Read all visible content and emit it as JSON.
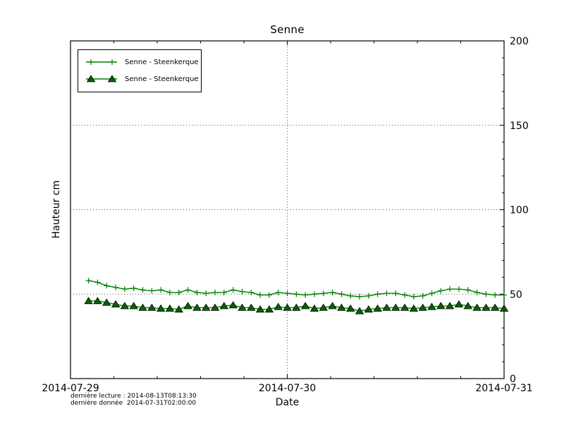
{
  "figure": {
    "title": "Senne",
    "xlabel": "Date",
    "ylabel": "Hauteur cm",
    "footnotes": [
      "dernière lecture : 2014-08-13T08:13:30",
      "dernière donnée  2014-07-31T02:00:00"
    ]
  },
  "chart_data": {
    "type": "line",
    "title": "Senne",
    "xlabel": "Date",
    "ylabel": "Hauteur cm",
    "ylim": [
      0,
      200
    ],
    "yticks": [
      0,
      50,
      100,
      150,
      200
    ],
    "ytick_side": "right",
    "xticks": [
      {
        "label": "2014-07-29",
        "hour": 0
      },
      {
        "label": "2014-07-30",
        "hour": 24
      },
      {
        "label": "2014-07-31",
        "hour": 48
      }
    ],
    "x_axis_range": [
      "2014-07-29T00:00",
      "2014-07-31T00:00"
    ],
    "x_total_hours": 48,
    "grid": {
      "style": "dotted",
      "y_values": [
        50,
        100,
        150
      ],
      "x_hours": [
        24
      ]
    },
    "legend_position": "upper left",
    "x_start": "2014-07-29T02:00",
    "x_start_hour_offset": 2,
    "x_interval_hours": 1,
    "series": [
      {
        "name": "Senne - Steenkerque",
        "marker": "plus",
        "line_color": "#008000",
        "marker_color": "#008000",
        "values": [
          58,
          57,
          55,
          54,
          53,
          53.5,
          52.5,
          52,
          52.5,
          51,
          51,
          52.5,
          51,
          50.5,
          51,
          51,
          52.5,
          51.5,
          51,
          49.5,
          49.5,
          51,
          50.5,
          50,
          49.5,
          50,
          50.5,
          51,
          50,
          49,
          48.5,
          49,
          50,
          50.5,
          50.5,
          49.5,
          48.5,
          49,
          50.5,
          52,
          53,
          53,
          52.5,
          51,
          50,
          49.5,
          49.5
        ]
      },
      {
        "name": "Senne - Steenkerque",
        "marker": "triangle",
        "line_color": "#008000",
        "marker_fill": "#006400",
        "marker_edge": "#000000",
        "values": [
          46,
          46,
          45,
          44,
          43,
          43,
          42,
          42,
          41.5,
          41.5,
          41,
          43,
          42,
          42,
          42,
          43,
          43.5,
          42,
          42,
          41,
          41,
          42.5,
          42,
          42,
          43,
          41.5,
          42,
          43,
          42,
          41.5,
          40,
          41,
          41.5,
          42,
          42,
          42,
          41.5,
          42,
          42.5,
          43,
          43,
          44,
          43,
          42,
          42,
          42,
          41.5
        ]
      }
    ],
    "colors": {
      "grid": "#555555",
      "frame": "#000000",
      "background": "#ffffff"
    }
  }
}
